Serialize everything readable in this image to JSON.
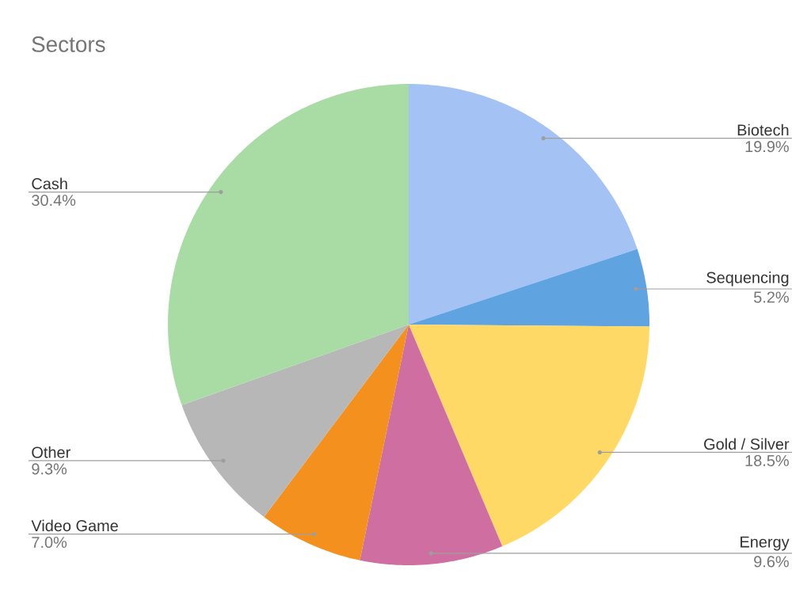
{
  "chart_data": {
    "type": "pie",
    "title": "Sectors",
    "categories": [
      "Biotech",
      "Sequencing",
      "Gold / Silver",
      "Energy",
      "Video Game",
      "Other",
      "Cash"
    ],
    "values": [
      19.9,
      5.2,
      18.5,
      9.6,
      7.0,
      9.3,
      30.4
    ],
    "value_labels": [
      "19.9%",
      "5.2%",
      "18.5%",
      "9.6%",
      "7.0%",
      "9.3%",
      "30.4%"
    ],
    "colors": [
      "#a4c2f4",
      "#5fa3e0",
      "#ffd966",
      "#cf6fa1",
      "#f4901e",
      "#b7b7b7",
      "#a9dba4"
    ]
  }
}
